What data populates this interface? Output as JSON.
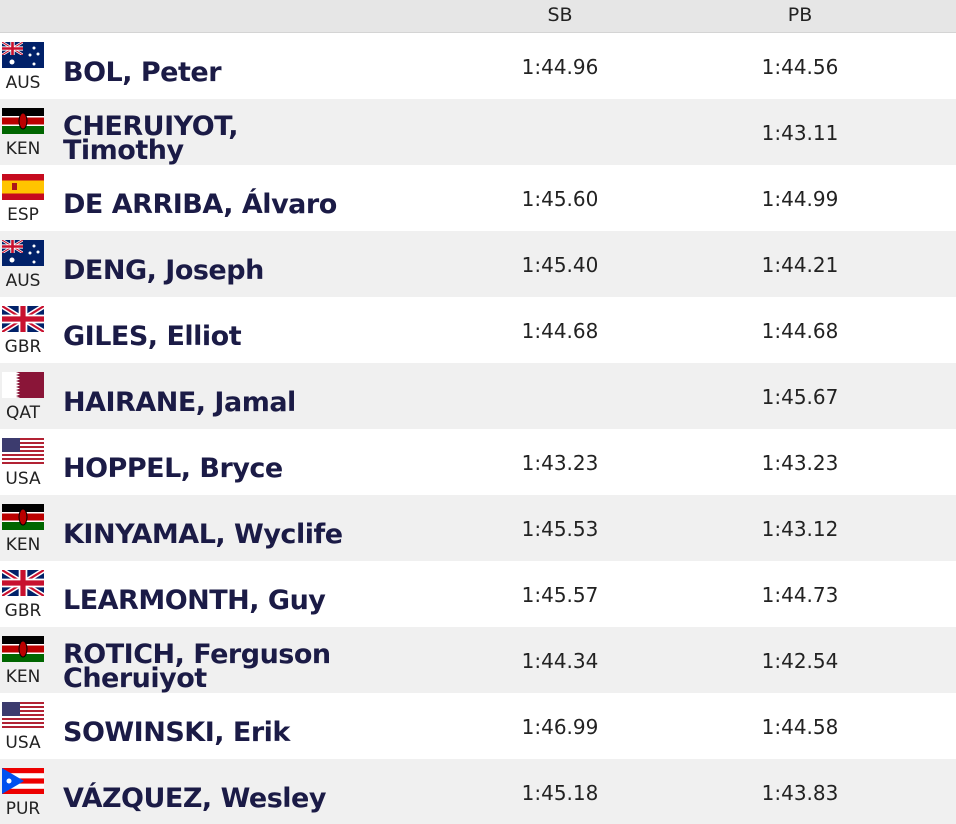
{
  "table": {
    "header": [
      "SB",
      "PB"
    ],
    "rows": [
      [
        "AUS",
        "BOL, Peter",
        "1:44.96",
        "1:44.56"
      ],
      [
        "KEN",
        "CHERUIYOT, Timothy",
        null,
        "1:43.11"
      ],
      [
        "ESP",
        "DE ARRIBA, Álvaro",
        "1:45.60",
        "1:44.99"
      ],
      [
        "AUS",
        "DENG, Joseph",
        "1:45.40",
        "1:44.21"
      ],
      [
        "GBR",
        "GILES, Elliot",
        "1:44.68",
        "1:44.68"
      ],
      [
        "QAT",
        "HAIRANE, Jamal",
        null,
        "1:45.67"
      ],
      [
        "USA",
        "HOPPEL, Bryce",
        "1:43.23",
        "1:43.23"
      ],
      [
        "KEN",
        "KINYAMAL, Wyclife",
        "1:45.53",
        "1:43.12"
      ],
      [
        "GBR",
        "LEARMONTH, Guy",
        "1:45.57",
        "1:44.73"
      ],
      [
        "KEN",
        "ROTICH, Ferguson Cheruiyot",
        "1:44.34",
        "1:42.54"
      ],
      [
        "USA",
        "SOWINSKI, Erik",
        "1:46.99",
        "1:44.58"
      ],
      [
        "PUR",
        "VÁZQUEZ, Wesley",
        "1:45.18",
        "1:43.83"
      ]
    ]
  }
}
